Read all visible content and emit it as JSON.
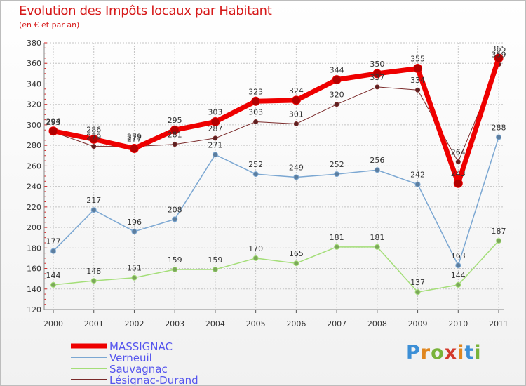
{
  "title": "Evolution des Impôts locaux par Habitant",
  "subtitle": "(en € et par an)",
  "logo": {
    "letters": [
      "P",
      "r",
      "o",
      "x",
      "i",
      "t",
      "i"
    ],
    "colors": [
      "#3c8fd6",
      "#e0861e",
      "#79b33a",
      "#d33a2c",
      "#e0861e",
      "#3c8fd6",
      "#79b33a"
    ]
  },
  "chart_data": {
    "type": "line",
    "title": "Evolution des Impôts locaux par Habitant",
    "subtitle": "(en € et par an)",
    "xlabel": "",
    "ylabel": "",
    "x": [
      "2000",
      "2001",
      "2002",
      "2003",
      "2004",
      "2005",
      "2006",
      "2007",
      "2008",
      "2009",
      "2010",
      "2011"
    ],
    "ylim": [
      120,
      380
    ],
    "yticks": [
      120,
      140,
      160,
      180,
      200,
      220,
      240,
      260,
      280,
      300,
      320,
      340,
      360,
      380
    ],
    "grid": true,
    "legend_position": "bottom-left",
    "series": [
      {
        "name": "Lésignac-Durand",
        "color": "#7a2a2a",
        "width": 1,
        "marker": 3,
        "values": [
          293,
          279,
          279,
          281,
          287,
          303,
          301,
          320,
          337,
          334,
          264,
          359
        ],
        "labels": [
          "293",
          "279",
          "279",
          "281",
          "287",
          "303",
          "301",
          "320",
          "337",
          "334",
          "264",
          "359"
        ]
      },
      {
        "name": "Sauvagnac",
        "color": "#a4de78",
        "width": 1.5,
        "marker": 3.5,
        "values": [
          144,
          148,
          151,
          159,
          159,
          170,
          165,
          181,
          181,
          137,
          144,
          187
        ],
        "labels": [
          "144",
          "148",
          "151",
          "159",
          "159",
          "170",
          "165",
          "181",
          "181",
          "137",
          "144",
          "187"
        ]
      },
      {
        "name": "Verneuil",
        "color": "#7ba7d2",
        "width": 1.5,
        "marker": 3.5,
        "values": [
          177,
          217,
          196,
          208,
          271,
          252,
          249,
          252,
          256,
          242,
          163,
          288
        ],
        "labels": [
          "177",
          "217",
          "196",
          "208",
          "271",
          "252",
          "249",
          "252",
          "256",
          "242",
          "163",
          "288"
        ]
      },
      {
        "name": "MASSIGNAC",
        "color": "#ee0000",
        "width": 7,
        "marker": 6,
        "values": [
          294,
          286,
          277,
          295,
          303,
          323,
          324,
          344,
          350,
          355,
          243,
          365
        ],
        "labels": [
          "294",
          "286",
          "277",
          "295",
          "303",
          "323",
          "324",
          "344",
          "350",
          "355",
          "243",
          "365"
        ]
      }
    ],
    "legend": [
      {
        "name": "MASSIGNAC",
        "color": "#ee0000",
        "text_color": "#5555ee",
        "width": 7
      },
      {
        "name": "Verneuil",
        "color": "#7ba7d2",
        "text_color": "#5555ee",
        "width": 2
      },
      {
        "name": "Sauvagnac",
        "color": "#a4de78",
        "text_color": "#5555ee",
        "width": 2
      },
      {
        "name": "Lésignac-Durand",
        "color": "#7a2a2a",
        "text_color": "#5555ee",
        "width": 2
      }
    ]
  }
}
